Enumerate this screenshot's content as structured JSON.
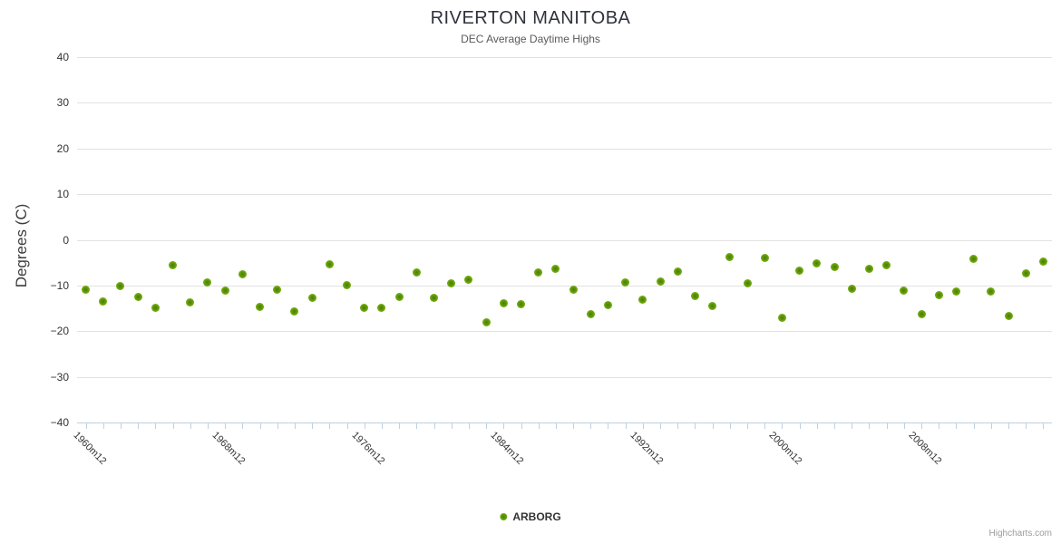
{
  "header": {
    "title": "RIVERTON MANITOBA",
    "subtitle": "DEC Average Daytime Highs"
  },
  "y_axis": {
    "title": "Degrees (C)"
  },
  "legend": {
    "label": "ARBORG"
  },
  "credits": {
    "label": "Highcharts.com"
  },
  "colors": {
    "marker": "#76af13",
    "marker_center": "#4a7a06",
    "gridline": "#e2e2e2",
    "axis_line": "#c0d0e0",
    "title_text": "#2f323c",
    "subtitle_text": "#5a5a5a",
    "axis_label_text": "#333333",
    "credits_text": "#9b9b9b"
  },
  "chart_data": {
    "type": "scatter",
    "title": "RIVERTON MANITOBA",
    "subtitle": "DEC Average Daytime Highs",
    "xlabel": "",
    "ylabel": "Degrees (C)",
    "ylim": [
      -40,
      40
    ],
    "yticks": [
      40,
      30,
      20,
      10,
      0,
      -10,
      -20,
      -30,
      -40
    ],
    "grid": true,
    "legend_position": "bottom-center",
    "x_label_step": 8,
    "x_labels_shown": [
      "1960m12",
      "1968m12",
      "1976m12",
      "1984m12",
      "1992m12",
      "2000m12",
      "2008m12"
    ],
    "categories": [
      "1960m12",
      "1961m12",
      "1962m12",
      "1963m12",
      "1964m12",
      "1965m12",
      "1966m12",
      "1967m12",
      "1968m12",
      "1969m12",
      "1970m12",
      "1971m12",
      "1972m12",
      "1973m12",
      "1974m12",
      "1975m12",
      "1976m12",
      "1977m12",
      "1978m12",
      "1979m12",
      "1980m12",
      "1981m12",
      "1982m12",
      "1983m12",
      "1984m12",
      "1985m12",
      "1986m12",
      "1987m12",
      "1988m12",
      "1989m12",
      "1990m12",
      "1991m12",
      "1992m12",
      "1993m12",
      "1994m12",
      "1995m12",
      "1996m12",
      "1997m12",
      "1998m12",
      "1999m12",
      "2000m12",
      "2001m12",
      "2002m12",
      "2003m12",
      "2004m12",
      "2005m12",
      "2006m12",
      "2007m12",
      "2008m12",
      "2009m12",
      "2010m12",
      "2011m12",
      "2012m12",
      "2013m12",
      "2014m12",
      "2015m12"
    ],
    "series": [
      {
        "name": "ARBORG",
        "color": "#76af13",
        "values": [
          -10.9,
          -13.4,
          -10.1,
          -12.5,
          -14.8,
          -5.5,
          -13.6,
          -9.3,
          -11.1,
          -7.6,
          -14.7,
          -11.0,
          -15.7,
          -12.8,
          -5.4,
          -9.9,
          -14.9,
          -14.9,
          -12.5,
          -7.2,
          -12.8,
          -9.5,
          -8.7,
          -18.0,
          -13.8,
          -14.0,
          -7.2,
          -6.4,
          -10.9,
          -16.3,
          -14.2,
          -9.3,
          -13.2,
          -9.1,
          -7.0,
          -12.3,
          -14.4,
          -3.7,
          -9.5,
          -4.0,
          -17.0,
          -6.8,
          -5.2,
          -6.0,
          -10.7,
          -6.4,
          -5.5,
          -11.1,
          -16.3,
          -12.1,
          -11.3,
          -4.2,
          -11.3,
          -16.7,
          -7.4,
          -4.8
        ]
      }
    ]
  }
}
